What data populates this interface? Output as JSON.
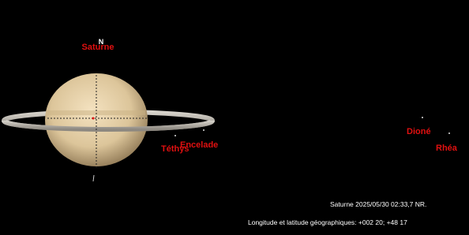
{
  "labels": {
    "planet": "Saturne",
    "north": "N"
  },
  "moons": [
    {
      "name": "Téthys"
    },
    {
      "name": "Encelade"
    },
    {
      "name": "Dioné"
    },
    {
      "name": "Rhéa"
    }
  ],
  "info": {
    "line1": "Saturne 2025/05/30 02:33,7 NR.",
    "line2": "Longitude et latitude géographiques: +002 20; +48 17"
  }
}
